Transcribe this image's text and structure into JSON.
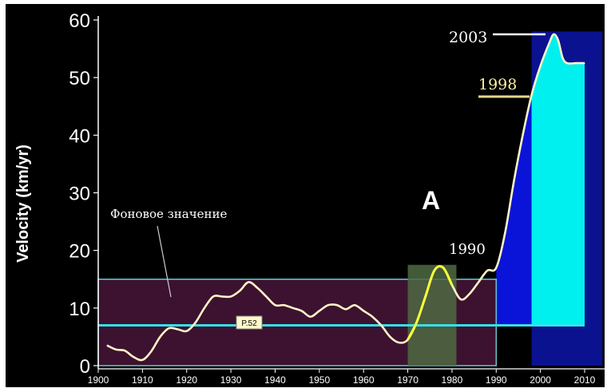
{
  "chart_data": {
    "type": "line",
    "ylabel": "Velocity (km/yr)",
    "xlim": [
      1900,
      2014
    ],
    "ylim": [
      0,
      60
    ],
    "x_ticks": [
      "1900",
      "1910",
      "1920",
      "1930",
      "1940",
      "1950",
      "1960",
      "1970",
      "1980",
      "1990",
      "2000",
      "2010"
    ],
    "y_ticks": [
      "0",
      "10",
      "20",
      "30",
      "40",
      "50",
      "60"
    ],
    "series": [
      {
        "values": [
          [
            1902,
            3.5
          ],
          [
            1904,
            2.8
          ],
          [
            1906,
            2.6
          ],
          [
            1908,
            1.5
          ],
          [
            1910,
            1.0
          ],
          [
            1912,
            2.5
          ],
          [
            1914,
            5.0
          ],
          [
            1916,
            6.5
          ],
          [
            1918,
            6.3
          ],
          [
            1920,
            6.0
          ],
          [
            1922,
            7.5
          ],
          [
            1924,
            10.0
          ],
          [
            1926,
            12.0
          ],
          [
            1928,
            12.0
          ],
          [
            1930,
            12.0
          ],
          [
            1932,
            13.0
          ],
          [
            1934,
            14.5
          ],
          [
            1936,
            13.5
          ],
          [
            1938,
            12.0
          ],
          [
            1940,
            10.5
          ],
          [
            1942,
            10.5
          ],
          [
            1944,
            10.0
          ],
          [
            1946,
            9.5
          ],
          [
            1948,
            8.5
          ],
          [
            1950,
            9.5
          ],
          [
            1952,
            10.5
          ],
          [
            1954,
            10.5
          ],
          [
            1956,
            9.8
          ],
          [
            1958,
            10.5
          ],
          [
            1960,
            9.5
          ],
          [
            1962,
            8.5
          ],
          [
            1964,
            7.0
          ],
          [
            1966,
            5.0
          ],
          [
            1968,
            4.0
          ],
          [
            1970,
            4.5
          ],
          [
            1972,
            7.5
          ],
          [
            1974,
            12.0
          ],
          [
            1976,
            16.5
          ],
          [
            1978,
            17.0
          ],
          [
            1980,
            14.0
          ],
          [
            1982,
            11.5
          ],
          [
            1984,
            12.5
          ],
          [
            1986,
            14.5
          ],
          [
            1988,
            16.5
          ],
          [
            1990,
            17.0
          ],
          [
            1992,
            23.0
          ],
          [
            1994,
            32.0
          ],
          [
            1996,
            40.0
          ],
          [
            1998,
            47.0
          ],
          [
            2000,
            52.0
          ],
          [
            2002,
            56.0
          ],
          [
            2003,
            57.5
          ],
          [
            2004,
            56.5
          ],
          [
            2005,
            53.5
          ],
          [
            2006,
            52.5
          ],
          [
            2008,
            52.5
          ],
          [
            2010,
            52.5
          ]
        ]
      }
    ],
    "annotations": {
      "background_label": "Фоновое значение",
      "panel_letter": "A",
      "label_1990": "1990",
      "label_1998": "1998",
      "label_2003": "2003",
      "page_ref": "P.52"
    },
    "background_band": {
      "x_range": [
        1900,
        1990
      ],
      "y_range": [
        0,
        15
      ],
      "line_y": 7
    },
    "highlight_period": {
      "x_range": [
        1970,
        1981
      ]
    },
    "blue_fill": {
      "x_range": [
        1990,
        2014
      ],
      "y_range": [
        7,
        58
      ]
    },
    "cyan_fill": {
      "x_range": [
        1998,
        2014
      ],
      "baseline": 7
    },
    "grid": false,
    "colors": {
      "background": "#000000",
      "curve": "#fff5c6",
      "curve_highlight": "#ffff3a",
      "band_fill": "#3c1230",
      "band_border": "#67c7cd",
      "threshold_line": "#35e0e8",
      "highlight_fill": "#4e6a42",
      "blue_fill": "#0a14d8",
      "dark_blue": "#0a1290",
      "cyan_fill": "#00f0f0",
      "axis_text": "#ffffff",
      "axis_line": "#ffffff",
      "label_1998_line": "#e5d98a"
    }
  }
}
